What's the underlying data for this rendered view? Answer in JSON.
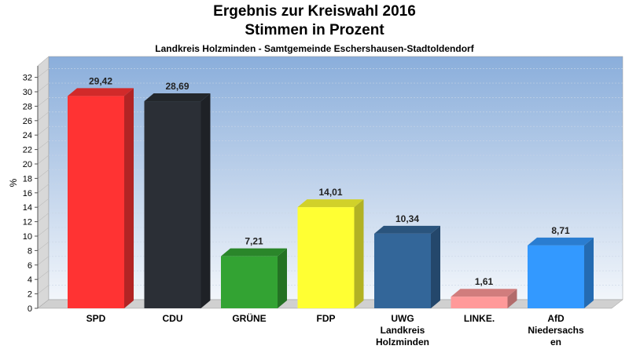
{
  "chart_data": {
    "type": "bar",
    "title": "Ergebnis zur Kreiswahl 2016",
    "subtitle_line2": "Stimmen in Prozent",
    "subtitle": "Landkreis Holzminden - Samtgemeinde Eschershausen-Stadtoldendorf",
    "ylabel": "%",
    "xlabel": "",
    "ylim": [
      0,
      34
    ],
    "yticks": [
      0,
      2,
      4,
      6,
      8,
      10,
      12,
      14,
      16,
      18,
      20,
      22,
      24,
      26,
      28,
      30,
      32
    ],
    "grid": true,
    "categories": [
      [
        "SPD"
      ],
      [
        "CDU"
      ],
      [
        "GRÜNE"
      ],
      [
        "FDP"
      ],
      [
        "UWG",
        "Landkreis",
        "Holzminden"
      ],
      [
        "LINKE."
      ],
      [
        "AfD",
        "Niedersachs",
        "en"
      ]
    ],
    "values": [
      29.42,
      28.69,
      7.21,
      14.01,
      10.34,
      1.61,
      8.71
    ],
    "value_labels": [
      "29,42",
      "28,69",
      "7,21",
      "14,01",
      "10,34",
      "1,61",
      "8,71"
    ],
    "colors": [
      "#ff3333",
      "#2b2f36",
      "#33a333",
      "#ffff33",
      "#336699",
      "#ff9999",
      "#3399ff"
    ]
  }
}
